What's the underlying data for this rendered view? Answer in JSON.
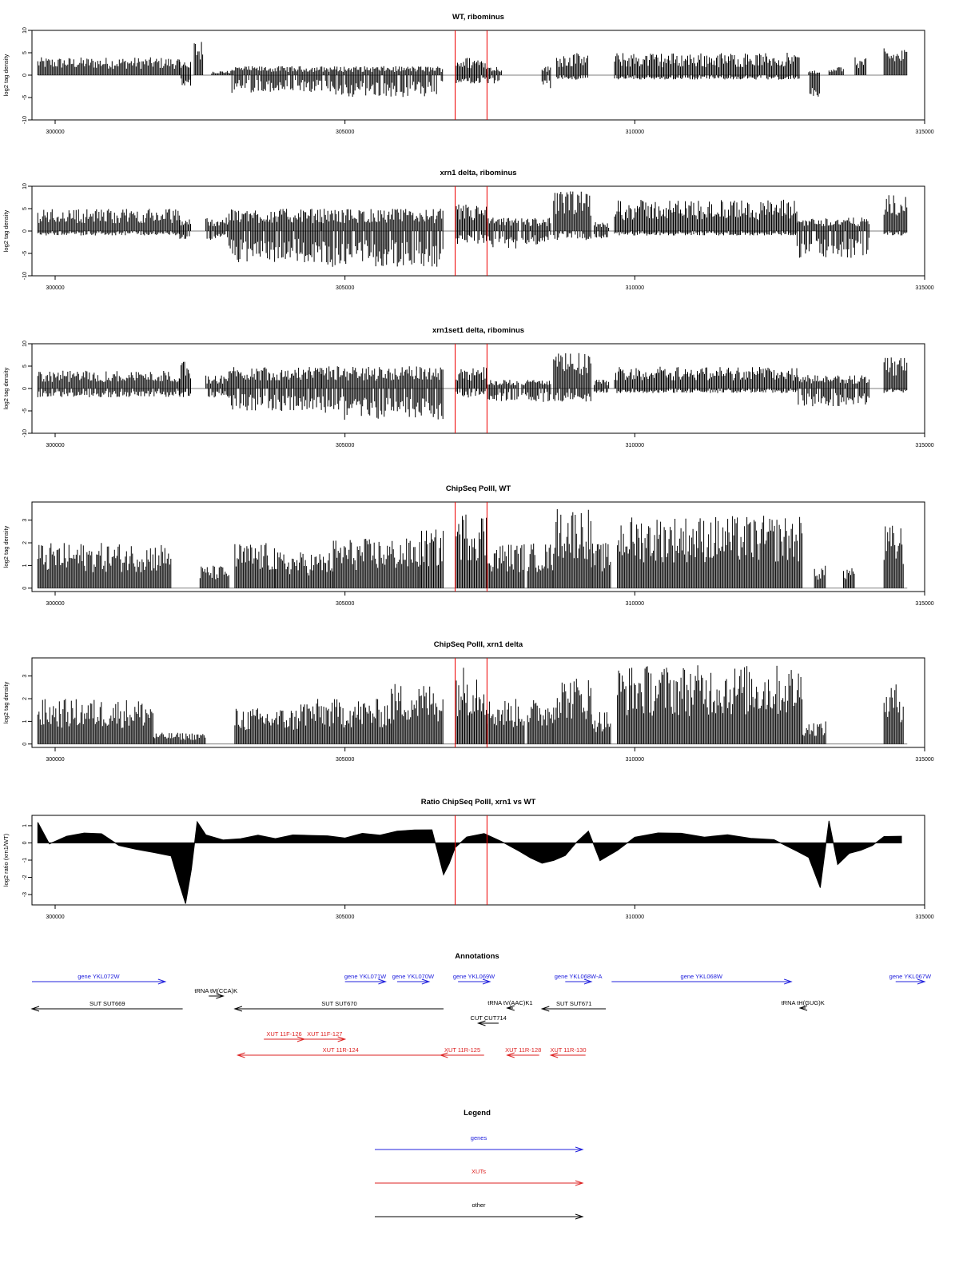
{
  "chart_data": [
    {
      "type": "bar",
      "title": "WT, ribominus",
      "ylabel": "log2 tag density",
      "xlim": [
        299600,
        315000
      ],
      "ylim": [
        -10,
        10
      ],
      "yticks": [
        10,
        5,
        0,
        -5,
        -10
      ],
      "xticks": [
        300000,
        305000,
        310000,
        315000
      ],
      "markers": [
        306900,
        307450
      ],
      "series": [
        {
          "segments": [
            {
              "start": 299700,
              "end": 302150,
              "pos": 4,
              "neg": 0
            },
            {
              "start": 302150,
              "end": 302350,
              "pos": 3,
              "neg": 3
            },
            {
              "start": 302400,
              "end": 302550,
              "pos": 8,
              "neg": 0
            },
            {
              "start": 302700,
              "end": 303050,
              "pos": 1,
              "neg": 0
            },
            {
              "start": 303050,
              "end": 304800,
              "pos": 2,
              "neg": 4
            },
            {
              "start": 304800,
              "end": 306700,
              "pos": 2,
              "neg": 5
            },
            {
              "start": 306900,
              "end": 307450,
              "pos": 4,
              "neg": 2
            },
            {
              "start": 307450,
              "end": 307700,
              "pos": 2,
              "neg": 2
            },
            {
              "start": 308400,
              "end": 308550,
              "pos": 2,
              "neg": 3
            },
            {
              "start": 308650,
              "end": 309200,
              "pos": 5,
              "neg": 1
            },
            {
              "start": 309650,
              "end": 312850,
              "pos": 5,
              "neg": 1
            },
            {
              "start": 313000,
              "end": 313200,
              "pos": 1,
              "neg": 5
            },
            {
              "start": 313350,
              "end": 313600,
              "pos": 2,
              "neg": 0
            },
            {
              "start": 313800,
              "end": 314000,
              "pos": 4,
              "neg": 0
            },
            {
              "start": 314300,
              "end": 314700,
              "pos": 6,
              "neg": 0
            }
          ]
        }
      ]
    },
    {
      "type": "bar",
      "title": "xrn1 delta, ribominus",
      "ylabel": "log2 tag density",
      "xlim": [
        299600,
        315000
      ],
      "ylim": [
        -10,
        10
      ],
      "yticks": [
        10,
        5,
        0,
        -5,
        -10
      ],
      "xticks": [
        300000,
        305000,
        310000,
        315000
      ],
      "markers": [
        306900,
        307450
      ],
      "series": [
        {
          "segments": [
            {
              "start": 299700,
              "end": 302150,
              "pos": 5,
              "neg": 1
            },
            {
              "start": 302150,
              "end": 302350,
              "pos": 3,
              "neg": 2
            },
            {
              "start": 302600,
              "end": 303000,
              "pos": 3,
              "neg": 2
            },
            {
              "start": 303000,
              "end": 304600,
              "pos": 5,
              "neg": 7
            },
            {
              "start": 304600,
              "end": 306700,
              "pos": 5,
              "neg": 8
            },
            {
              "start": 306900,
              "end": 307450,
              "pos": 6,
              "neg": 3
            },
            {
              "start": 307450,
              "end": 308000,
              "pos": 3,
              "neg": 4
            },
            {
              "start": 308050,
              "end": 308550,
              "pos": 3,
              "neg": 3
            },
            {
              "start": 308600,
              "end": 309250,
              "pos": 9,
              "neg": 2
            },
            {
              "start": 309300,
              "end": 309550,
              "pos": 2,
              "neg": 2
            },
            {
              "start": 309650,
              "end": 312800,
              "pos": 7,
              "neg": 1
            },
            {
              "start": 312800,
              "end": 314050,
              "pos": 3,
              "neg": 6
            },
            {
              "start": 314300,
              "end": 314700,
              "pos": 8,
              "neg": 1
            }
          ]
        }
      ]
    },
    {
      "type": "bar",
      "title": "xrn1set1 delta, ribominus",
      "ylabel": "log2 tag density",
      "xlim": [
        299600,
        315000
      ],
      "ylim": [
        -10,
        10
      ],
      "yticks": [
        10,
        5,
        0,
        -5,
        -10
      ],
      "xticks": [
        300000,
        305000,
        310000,
        315000
      ],
      "markers": [
        306900,
        307450
      ],
      "series": [
        {
          "segments": [
            {
              "start": 299700,
              "end": 302150,
              "pos": 4,
              "neg": 2
            },
            {
              "start": 302150,
              "end": 302350,
              "pos": 6,
              "neg": 2
            },
            {
              "start": 302600,
              "end": 303000,
              "pos": 3,
              "neg": 2
            },
            {
              "start": 303000,
              "end": 304600,
              "pos": 5,
              "neg": 5
            },
            {
              "start": 304600,
              "end": 306700,
              "pos": 5,
              "neg": 7
            },
            {
              "start": 306900,
              "end": 307450,
              "pos": 5,
              "neg": 2
            },
            {
              "start": 307450,
              "end": 308000,
              "pos": 2,
              "neg": 3
            },
            {
              "start": 308050,
              "end": 308550,
              "pos": 2,
              "neg": 3
            },
            {
              "start": 308600,
              "end": 309250,
              "pos": 8,
              "neg": 3
            },
            {
              "start": 309300,
              "end": 309550,
              "pos": 2,
              "neg": 1
            },
            {
              "start": 309650,
              "end": 312800,
              "pos": 5,
              "neg": 1
            },
            {
              "start": 312800,
              "end": 314050,
              "pos": 3,
              "neg": 4
            },
            {
              "start": 314300,
              "end": 314700,
              "pos": 7,
              "neg": 1
            }
          ]
        }
      ]
    },
    {
      "type": "bar",
      "title": "ChipSeq PolII, WT",
      "ylabel": "log2 tag density",
      "xlim": [
        299600,
        315000
      ],
      "ylim": [
        -0.15,
        3.8
      ],
      "yticks": [
        3,
        2,
        1,
        0
      ],
      "xticks": [
        300000,
        305000,
        310000,
        315000
      ],
      "markers": [
        306900,
        307450
      ],
      "series": [
        {
          "segments": [
            {
              "start": 299700,
              "end": 302000,
              "pos": 2,
              "neg": 0
            },
            {
              "start": 302500,
              "end": 303000,
              "pos": 1,
              "neg": 0
            },
            {
              "start": 303100,
              "end": 303800,
              "pos": 2,
              "neg": 0
            },
            {
              "start": 303800,
              "end": 304800,
              "pos": 1.6,
              "neg": 0
            },
            {
              "start": 304800,
              "end": 306300,
              "pos": 2.2,
              "neg": 0
            },
            {
              "start": 306300,
              "end": 306700,
              "pos": 2.6,
              "neg": 0
            },
            {
              "start": 306900,
              "end": 307450,
              "pos": 3.4,
              "neg": 0
            },
            {
              "start": 307450,
              "end": 308100,
              "pos": 2,
              "neg": 0
            },
            {
              "start": 308150,
              "end": 308600,
              "pos": 2,
              "neg": 0
            },
            {
              "start": 308600,
              "end": 309250,
              "pos": 3.6,
              "neg": 0
            },
            {
              "start": 309250,
              "end": 309600,
              "pos": 2,
              "neg": 0
            },
            {
              "start": 309700,
              "end": 312900,
              "pos": 3.2,
              "neg": 0
            },
            {
              "start": 313100,
              "end": 313300,
              "pos": 1,
              "neg": 0
            },
            {
              "start": 313600,
              "end": 313800,
              "pos": 1,
              "neg": 0
            },
            {
              "start": 314300,
              "end": 314650,
              "pos": 2.8,
              "neg": 0
            }
          ]
        }
      ]
    },
    {
      "type": "bar",
      "title": "ChipSeq PolII, xrn1 delta",
      "ylabel": "log2 tag density",
      "xlim": [
        299600,
        315000
      ],
      "ylim": [
        -0.15,
        3.8
      ],
      "yticks": [
        3,
        2,
        1,
        0
      ],
      "xticks": [
        300000,
        305000,
        310000,
        315000
      ],
      "markers": [
        306900,
        307450
      ],
      "series": [
        {
          "segments": [
            {
              "start": 299700,
              "end": 301700,
              "pos": 2,
              "neg": 0
            },
            {
              "start": 301700,
              "end": 302600,
              "pos": 0.5,
              "neg": 0
            },
            {
              "start": 303100,
              "end": 304200,
              "pos": 1.6,
              "neg": 0
            },
            {
              "start": 304200,
              "end": 305800,
              "pos": 2,
              "neg": 0
            },
            {
              "start": 305800,
              "end": 306700,
              "pos": 2.7,
              "neg": 0
            },
            {
              "start": 306900,
              "end": 307450,
              "pos": 3.5,
              "neg": 0
            },
            {
              "start": 307450,
              "end": 308100,
              "pos": 2,
              "neg": 0
            },
            {
              "start": 308150,
              "end": 308600,
              "pos": 2,
              "neg": 0
            },
            {
              "start": 308600,
              "end": 309250,
              "pos": 3,
              "neg": 0
            },
            {
              "start": 309250,
              "end": 309600,
              "pos": 1.5,
              "neg": 0
            },
            {
              "start": 309700,
              "end": 312900,
              "pos": 3.5,
              "neg": 0
            },
            {
              "start": 312900,
              "end": 313300,
              "pos": 1,
              "neg": 0
            },
            {
              "start": 314300,
              "end": 314650,
              "pos": 2.7,
              "neg": 0
            }
          ]
        }
      ]
    },
    {
      "type": "area",
      "title": "Ratio ChipSeq PolII, xrn1 vs WT",
      "ylabel": "log2 ratio (xrn1/WT)",
      "xlim": [
        299600,
        315000
      ],
      "ylim": [
        -3.6,
        1.6
      ],
      "yticks": [
        1,
        0,
        -1,
        -2,
        -3
      ],
      "xticks": [
        300000,
        305000,
        310000,
        315000
      ],
      "markers": [
        306900,
        307450
      ],
      "series": [
        {
          "x": [
            299700,
            299900,
            300200,
            300500,
            300800,
            301100,
            301400,
            301700,
            302000,
            302150,
            302250,
            302350,
            302450,
            302600,
            302900,
            303200,
            303500,
            303800,
            304100,
            304400,
            304700,
            305000,
            305300,
            305600,
            305900,
            306200,
            306500,
            306700,
            306800,
            306900,
            307100,
            307400,
            307700,
            308000,
            308200,
            308400,
            308600,
            308800,
            309000,
            309200,
            309400,
            309700,
            310000,
            310400,
            310800,
            311200,
            311600,
            312000,
            312400,
            312800,
            313000,
            313200,
            313350,
            313500,
            313700,
            313900,
            314100,
            314300,
            314600
          ],
          "y": [
            1.2,
            0.0,
            0.4,
            0.6,
            0.5,
            -0.2,
            -0.4,
            -0.5,
            -0.7,
            -2.5,
            -3.5,
            -1.5,
            1.2,
            0.5,
            0.2,
            0.2,
            0.4,
            0.3,
            0.5,
            0.4,
            0.4,
            0.3,
            0.6,
            0.5,
            0.7,
            0.7,
            0.8,
            -1.8,
            -1.2,
            -0.3,
            0.3,
            0.5,
            0.1,
            -0.4,
            -0.8,
            -1.2,
            -1.0,
            -0.7,
            0.1,
            0.7,
            -1.0,
            -0.4,
            0.3,
            0.6,
            0.5,
            0.4,
            0.5,
            0.3,
            0.2,
            -0.5,
            -0.8,
            -2.6,
            1.3,
            -1.2,
            -0.6,
            -0.4,
            -0.2,
            0.3,
            0.4
          ]
        }
      ]
    }
  ],
  "annotations": {
    "title": "Annotations",
    "features": [
      {
        "label": "gene YKL072W",
        "start": 299600,
        "end": 301900,
        "strand": "+",
        "category": "gene",
        "row": 0
      },
      {
        "label": "gene YKL071W",
        "start": 305000,
        "end": 305700,
        "strand": "+",
        "category": "gene",
        "row": 0
      },
      {
        "label": "gene YKL070W",
        "start": 305900,
        "end": 306450,
        "strand": "+",
        "category": "gene",
        "row": 0
      },
      {
        "label": "gene YKL069W",
        "start": 306950,
        "end": 307500,
        "strand": "+",
        "category": "gene",
        "row": 0
      },
      {
        "label": "gene YKL068W-A",
        "start": 308800,
        "end": 309250,
        "strand": "+",
        "category": "gene",
        "row": 0
      },
      {
        "label": "gene YKL068W",
        "start": 309600,
        "end": 312700,
        "strand": "+",
        "category": "gene",
        "row": 0
      },
      {
        "label": "gene YKL067W",
        "start": 314500,
        "end": 315000,
        "strand": "+",
        "category": "gene",
        "row": 0
      },
      {
        "label": "tRNA tM(CCA)K",
        "start": 302650,
        "end": 302900,
        "strand": "+",
        "category": "other",
        "row": 1
      },
      {
        "label": "tRNA tV(AAC)K1",
        "start": 307800,
        "end": 307900,
        "strand": "-",
        "category": "other",
        "row": 1.5
      },
      {
        "label": "tRNA tH(GUG)K",
        "start": 312850,
        "end": 312950,
        "strand": "-",
        "category": "other",
        "row": 1.5
      },
      {
        "label": "SUT SUT669",
        "start": 299600,
        "end": 302200,
        "strand": "-",
        "category": "other",
        "row": 2
      },
      {
        "label": "SUT SUT670",
        "start": 303100,
        "end": 306700,
        "strand": "-",
        "category": "other",
        "row": 2
      },
      {
        "label": "SUT SUT671",
        "start": 308400,
        "end": 309500,
        "strand": "-",
        "category": "other",
        "row": 2
      },
      {
        "label": "CUT CUT714",
        "start": 307300,
        "end": 307650,
        "strand": "-",
        "category": "other",
        "row": 3
      },
      {
        "label": "XUT 11F-126",
        "start": 303600,
        "end": 304300,
        "strand": "+",
        "category": "xut",
        "row": 4
      },
      {
        "label": "XUT 11F-127",
        "start": 304300,
        "end": 305000,
        "strand": "+",
        "category": "xut",
        "row": 4
      },
      {
        "label": "XUT 11R-124",
        "start": 303150,
        "end": 306700,
        "strand": "-",
        "category": "xut",
        "row": 5
      },
      {
        "label": "XUT 11R-125",
        "start": 306650,
        "end": 307400,
        "strand": "-",
        "category": "xut",
        "row": 5
      },
      {
        "label": "XUT 11R-128",
        "start": 307800,
        "end": 308350,
        "strand": "-",
        "category": "xut",
        "row": 5
      },
      {
        "label": "XUT 11R-130",
        "start": 308550,
        "end": 309150,
        "strand": "-",
        "category": "xut",
        "row": 5
      }
    ]
  },
  "legend": {
    "title": "Legend",
    "entries": [
      {
        "label": "genes",
        "color": "#2222dd"
      },
      {
        "label": "XUTs",
        "color": "#dd2222"
      },
      {
        "label": "other",
        "color": "#000000"
      }
    ]
  },
  "colors": {
    "marker": "#ee0000",
    "gene": "#2222dd",
    "xut": "#dd2222",
    "other": "#000000",
    "bars": "#000000"
  }
}
